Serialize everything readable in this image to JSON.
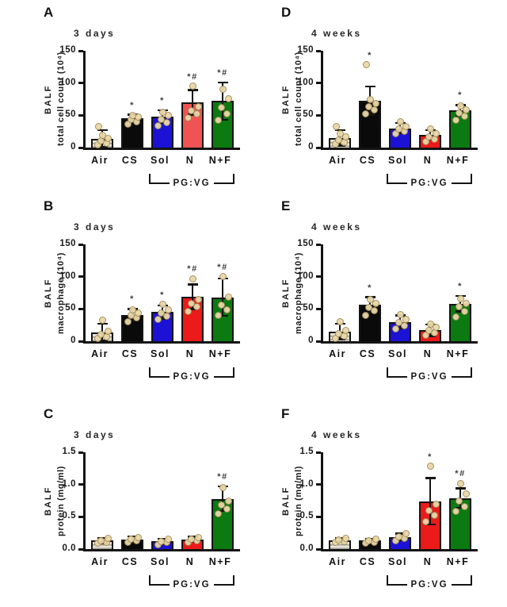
{
  "figure": {
    "bracket_label": "PG:VG",
    "colors": {
      "air_light": "#e8e4da",
      "air_dark": "#a29d93",
      "cs": "#0a0a0a",
      "sol": "#1c12d6",
      "n": "#ec1a1a",
      "n_salmon": "#f05353",
      "nf": "#0b7a10",
      "axis": "#141414",
      "dot_fill": "#ead8aa",
      "dot_edge": "#a08b55",
      "annotation": "#3d3d3d"
    }
  },
  "chart_data": [
    {
      "id": "A",
      "type": "bar",
      "title": "3 days",
      "ylabel_group": "BALF",
      "ylabel": "total cell count (10⁴)",
      "ylim": [
        0,
        150
      ],
      "ytick_values": [
        0,
        50,
        100,
        150
      ],
      "yticks": [
        "0",
        "50",
        "100",
        "150"
      ],
      "categories": [
        "Air",
        "CS",
        "Sol",
        "N",
        "N+F"
      ],
      "values": [
        14,
        45,
        48,
        70,
        72
      ],
      "err_up": [
        13,
        6,
        10,
        19,
        29
      ],
      "annotations": [
        "",
        "*",
        "*",
        "*#",
        "*#"
      ],
      "bar_colors": [
        "air",
        "cs",
        "sol",
        "n_salmon",
        "nf"
      ],
      "points": [
        [
          4,
          7,
          10,
          14,
          19,
          33
        ],
        [
          36,
          40,
          44,
          47,
          50
        ],
        [
          34,
          39,
          44,
          50,
          55
        ],
        [
          46,
          52,
          57,
          63,
          95
        ],
        [
          42,
          52,
          62,
          76,
          90
        ]
      ]
    },
    {
      "id": "B",
      "type": "bar",
      "title": "3 days",
      "ylabel_group": "BALF",
      "ylabel": "macrophage (10⁴)",
      "ylim": [
        0,
        150
      ],
      "ytick_values": [
        0,
        50,
        100,
        150
      ],
      "yticks": [
        "0",
        "50",
        "100",
        "150"
      ],
      "categories": [
        "Air",
        "CS",
        "Sol",
        "N",
        "N+F"
      ],
      "values": [
        14,
        41,
        45,
        69,
        68
      ],
      "err_up": [
        13,
        9,
        10,
        19,
        29
      ],
      "annotations": [
        "",
        "*",
        "*",
        "*#",
        "*#"
      ],
      "bar_colors": [
        "air",
        "cs",
        "sol",
        "n",
        "nf"
      ],
      "points": [
        [
          4,
          7,
          10,
          15,
          32
        ],
        [
          30,
          36,
          40,
          44,
          49
        ],
        [
          34,
          39,
          44,
          49,
          57
        ],
        [
          46,
          53,
          58,
          65,
          97
        ],
        [
          40,
          48,
          56,
          68,
          100
        ]
      ]
    },
    {
      "id": "C",
      "type": "bar",
      "title": "3 days",
      "ylabel_group": "BALF",
      "ylabel": "protein (mg/ml)",
      "ylim": [
        0,
        1.5
      ],
      "ytick_values": [
        0,
        0.5,
        1.0,
        1.5
      ],
      "yticks": [
        "0.0",
        "0.5",
        "1.0",
        "1.5"
      ],
      "categories": [
        "Air",
        "CS",
        "Sol",
        "N",
        "N+F"
      ],
      "values": [
        0.13,
        0.15,
        0.12,
        0.15,
        0.78
      ],
      "err_up": [
        0.04,
        0.05,
        0.04,
        0.04,
        0.19
      ],
      "annotations": [
        "",
        "",
        "",
        "",
        "*#"
      ],
      "bar_colors": [
        "air",
        "cs",
        "sol",
        "n",
        "nf"
      ],
      "points": [
        [
          0.09,
          0.11,
          0.13,
          0.16
        ],
        [
          0.11,
          0.13,
          0.15,
          0.18
        ],
        [
          0.07,
          0.1,
          0.12,
          0.15
        ],
        [
          0.11,
          0.13,
          0.15,
          0.18
        ],
        [
          0.55,
          0.62,
          0.68,
          0.75,
          0.95
        ]
      ]
    },
    {
      "id": "D",
      "type": "bar",
      "title": "4 weeks",
      "ylabel_group": "BALF",
      "ylabel": "total cell count (10⁴)",
      "ylim": [
        0,
        150
      ],
      "ytick_values": [
        0,
        50,
        100,
        150
      ],
      "yticks": [
        "0",
        "50",
        "100",
        "150"
      ],
      "categories": [
        "Air",
        "CS",
        "Sol",
        "N",
        "N+F"
      ],
      "values": [
        15,
        73,
        30,
        20,
        58
      ],
      "err_up": [
        12,
        22,
        8,
        7,
        8
      ],
      "annotations": [
        "",
        "*",
        "",
        "",
        "*"
      ],
      "bar_colors": [
        "air",
        "cs",
        "sol",
        "n",
        "nf"
      ],
      "points": [
        [
          5,
          8,
          12,
          16,
          21,
          33
        ],
        [
          52,
          58,
          63,
          68,
          74,
          128
        ],
        [
          21,
          25,
          29,
          33,
          40
        ],
        [
          9,
          13,
          17,
          22,
          29
        ],
        [
          42,
          48,
          53,
          58,
          64
        ]
      ]
    },
    {
      "id": "E",
      "type": "bar",
      "title": "4 weeks",
      "ylabel_group": "BALF",
      "ylabel": "macrophage (10⁴)",
      "ylim": [
        0,
        150
      ],
      "ytick_values": [
        0,
        50,
        100,
        150
      ],
      "yticks": [
        "0",
        "50",
        "100",
        "150"
      ],
      "categories": [
        "Air",
        "CS",
        "Sol",
        "N",
        "N+F"
      ],
      "values": [
        15,
        56,
        30,
        17,
        58
      ],
      "err_up": [
        12,
        12,
        10,
        9,
        12
      ],
      "annotations": [
        "",
        "*",
        "",
        "",
        "*"
      ],
      "bar_colors": [
        "air",
        "cs",
        "sol",
        "n",
        "nf"
      ],
      "points": [
        [
          4,
          8,
          12,
          16,
          30
        ],
        [
          40,
          47,
          52,
          58,
          64
        ],
        [
          19,
          24,
          29,
          34,
          41
        ],
        [
          9,
          13,
          16,
          21,
          27
        ],
        [
          38,
          46,
          53,
          58,
          66
        ]
      ]
    },
    {
      "id": "F",
      "type": "bar",
      "title": "4 weeks",
      "ylabel_group": "BALF",
      "ylabel": "protein (mg/ml)",
      "ylim": [
        0,
        1.5
      ],
      "ytick_values": [
        0,
        0.5,
        1.0,
        1.5
      ],
      "yticks": [
        "0.0",
        "0.5",
        "1.0",
        "1.5"
      ],
      "categories": [
        "Air",
        "CS",
        "Sol",
        "N",
        "N+F"
      ],
      "values": [
        0.14,
        0.13,
        0.19,
        0.74,
        0.79
      ],
      "err_up": [
        0.03,
        0.03,
        0.05,
        0.36,
        0.15
      ],
      "annotations": [
        "",
        "",
        "",
        "*",
        "*#"
      ],
      "bar_colors": [
        "air",
        "cs",
        "sol",
        "n",
        "nf"
      ],
      "points": [
        [
          0.1,
          0.12,
          0.14,
          0.16
        ],
        [
          0.09,
          0.11,
          0.13,
          0.15
        ],
        [
          0.13,
          0.16,
          0.19,
          0.24
        ],
        [
          0.42,
          0.52,
          0.6,
          0.7,
          1.28
        ],
        [
          0.58,
          0.66,
          0.74,
          0.85,
          1.02
        ]
      ]
    }
  ]
}
